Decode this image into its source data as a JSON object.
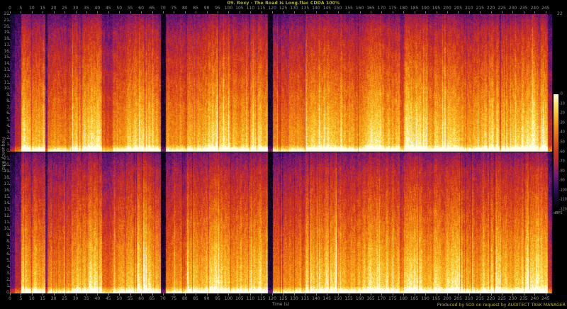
{
  "title": "09. Roxy - The Road Is Long.flac CDDA 100%",
  "footer": "Produced by SOX on request by AUDITECT TASK MANAGER",
  "right_axis_top_label": "22",
  "colors": {
    "background": "#000000",
    "accent_yellow": "#b9b918",
    "axis_text": "#8f8f8f"
  },
  "chart_data": {
    "type": "heatmap",
    "subtype": "audio-spectrogram-stereo",
    "title": "09. Roxy - The Road Is Long.flac CDDA 100%",
    "xlabel": "Time (s)",
    "ylabel": "Frequency (kHz)",
    "channels": 2,
    "duration_s": 248,
    "x_range_s": [
      0,
      248
    ],
    "x_ticks": [
      0,
      5,
      10,
      15,
      20,
      25,
      30,
      35,
      40,
      45,
      50,
      55,
      60,
      65,
      70,
      75,
      80,
      85,
      90,
      95,
      100,
      105,
      110,
      115,
      120,
      125,
      130,
      135,
      140,
      145,
      150,
      155,
      160,
      165,
      170,
      175,
      180,
      185,
      190,
      195,
      200,
      205,
      210,
      215,
      220,
      225,
      230,
      235,
      240,
      245
    ],
    "y_range_khz": [
      0,
      22
    ],
    "y_ticks_ch1": [
      22,
      21,
      20,
      19,
      18,
      17,
      16,
      15,
      14,
      13,
      12,
      11,
      10,
      9,
      8,
      7,
      6,
      5,
      4,
      3,
      2,
      1,
      0
    ],
    "y_ticks_ch2": [
      21,
      20,
      19,
      18,
      17,
      16,
      15,
      14,
      13,
      12,
      11,
      10,
      9,
      8,
      7,
      6,
      5,
      4,
      3,
      2,
      1,
      0
    ],
    "grid": false,
    "legend": "none",
    "layout_hints": {
      "time_axis": "top and bottom",
      "colorbar_position": "right",
      "channel_orientation": "0 kHz at bottom of each channel panel"
    },
    "colorbar": {
      "label": "dBFS",
      "db_range": [
        0,
        -120
      ],
      "ticks": [
        "-0",
        "-10",
        "-20",
        "-30",
        "-40",
        "-50",
        "-60",
        "-70",
        "-80",
        "-90",
        "-100",
        "-110",
        "-120"
      ]
    },
    "palette": [
      {
        "v": 0.0,
        "hex": "#000000"
      },
      {
        "v": 0.1,
        "hex": "#160832"
      },
      {
        "v": 0.2,
        "hex": "#3e0e64"
      },
      {
        "v": 0.3,
        "hex": "#731878"
      },
      {
        "v": 0.4,
        "hex": "#b2243e"
      },
      {
        "v": 0.5,
        "hex": "#d0341a"
      },
      {
        "v": 0.62,
        "hex": "#e86612"
      },
      {
        "v": 0.75,
        "hex": "#f69c12"
      },
      {
        "v": 0.87,
        "hex": "#fcd43c"
      },
      {
        "v": 0.95,
        "hex": "#fff096"
      },
      {
        "v": 1.0,
        "hex": "#ffffeb"
      }
    ],
    "loudness_envelope": [
      {
        "t0": 0,
        "t1": 2,
        "level": 0.28
      },
      {
        "t0": 2,
        "t1": 5,
        "level": 0.45
      },
      {
        "t0": 5,
        "t1": 16,
        "level": 0.88
      },
      {
        "t0": 16,
        "t1": 17,
        "level": 0.35
      },
      {
        "t0": 17,
        "t1": 28,
        "level": 0.72
      },
      {
        "t0": 28,
        "t1": 42,
        "level": 0.96
      },
      {
        "t0": 42,
        "t1": 47,
        "level": 0.7
      },
      {
        "t0": 47,
        "t1": 69,
        "level": 0.9
      },
      {
        "t0": 69,
        "t1": 71,
        "level": 0.13
      },
      {
        "t0": 71,
        "t1": 81,
        "level": 0.72
      },
      {
        "t0": 81,
        "t1": 106,
        "level": 0.95
      },
      {
        "t0": 106,
        "t1": 118,
        "level": 0.9
      },
      {
        "t0": 118,
        "t1": 120,
        "level": 0.13
      },
      {
        "t0": 120,
        "t1": 135,
        "level": 0.73
      },
      {
        "t0": 135,
        "t1": 178,
        "level": 0.94
      },
      {
        "t0": 178,
        "t1": 180,
        "level": 0.72
      },
      {
        "t0": 180,
        "t1": 246,
        "level": 0.93
      },
      {
        "t0": 246,
        "t1": 248,
        "level": 0.5
      }
    ]
  }
}
